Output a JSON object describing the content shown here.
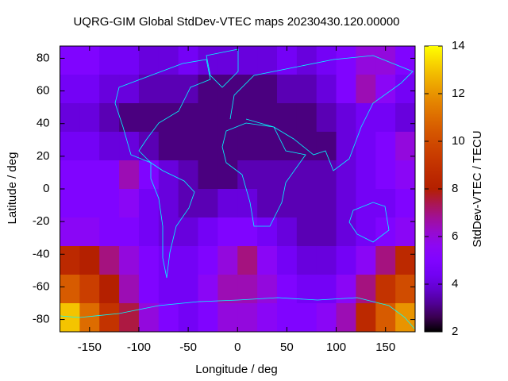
{
  "chart_data": {
    "type": "heatmap",
    "title": "UQRG-GIM Global StdDev-VTEC maps 20230430.120.00000",
    "x_label": "Longitude / deg",
    "y_label": "Latitude / deg",
    "colorbar_label": "StdDev-VTEC / TECU",
    "colormap": "gnuplot",
    "x": [
      -170,
      -150,
      -130,
      -110,
      -90,
      -70,
      -50,
      -30,
      -10,
      10,
      30,
      50,
      70,
      90,
      110,
      130,
      150,
      170
    ],
    "y": [
      78.75,
      61.25,
      43.75,
      26.25,
      8.75,
      -8.75,
      -26.25,
      -43.75,
      -61.25,
      -78.75
    ],
    "values": [
      [
        5,
        5,
        4.5,
        4.5,
        4,
        4,
        4.5,
        4,
        4,
        4,
        4,
        4.5,
        4,
        4.5,
        5,
        6,
        6,
        5
      ],
      [
        4.5,
        4.5,
        4,
        4,
        3.5,
        3.5,
        3.5,
        3,
        3,
        3,
        3,
        3.5,
        3.5,
        4,
        5,
        6.5,
        5.5,
        4.5
      ],
      [
        4,
        4,
        3.5,
        3,
        3,
        3,
        3,
        3,
        3,
        3,
        3,
        3,
        3,
        3.5,
        4,
        4.5,
        4.5,
        4
      ],
      [
        4.5,
        4.5,
        4,
        4,
        3.5,
        3,
        3,
        3,
        3,
        3,
        3,
        3,
        3,
        3,
        4,
        4.5,
        5,
        6
      ],
      [
        5,
        5,
        5,
        6.5,
        5,
        4,
        3.5,
        3,
        3,
        3.5,
        3.5,
        3.5,
        3.5,
        3.5,
        4,
        4.5,
        5,
        5.5
      ],
      [
        5,
        5,
        5,
        5.5,
        4.5,
        4,
        3.5,
        3.5,
        4,
        4,
        3.5,
        3.5,
        3.5,
        3.5,
        4,
        4.5,
        4.5,
        5
      ],
      [
        5.5,
        5.5,
        5,
        5,
        4.5,
        4,
        4,
        4.5,
        5,
        5,
        4.5,
        4,
        3.5,
        3.5,
        4,
        4.5,
        5,
        5.5
      ],
      [
        8.5,
        8,
        7,
        6,
        5,
        4.5,
        4.5,
        5,
        6,
        7,
        5.5,
        4.5,
        4,
        4,
        4.5,
        5.5,
        7,
        8.5
      ],
      [
        10.5,
        9.5,
        8,
        6.5,
        5,
        4.5,
        4.5,
        5.5,
        6.5,
        6.5,
        6,
        5,
        4.5,
        4.5,
        5.5,
        7,
        9,
        10
      ],
      [
        13,
        11,
        9,
        7.5,
        6,
        5,
        4.5,
        5,
        6,
        6,
        5.5,
        5,
        5,
        5.5,
        6.5,
        8.5,
        10.5,
        12
      ]
    ],
    "xlim": [
      -180,
      180
    ],
    "ylim": [
      -87.5,
      87.5
    ],
    "zlim": [
      2,
      14
    ],
    "xticks": [
      -150,
      -100,
      -50,
      0,
      50,
      100,
      150
    ],
    "yticks": [
      -80,
      -60,
      -40,
      -20,
      0,
      20,
      40,
      60,
      80
    ],
    "zticks": [
      2,
      4,
      6,
      8,
      10,
      12,
      14
    ]
  }
}
